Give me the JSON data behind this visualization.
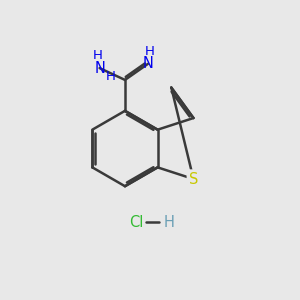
{
  "background_color": "#e8e8e8",
  "bond_color": "#3a3a3a",
  "N_color": "#0000ee",
  "S_color": "#c8c800",
  "Cl_color": "#33bb33",
  "H_bond_color": "#6a9fb5",
  "figsize": [
    3.0,
    3.0
  ],
  "dpi": 100,
  "xlim": [
    0,
    10
  ],
  "ylim": [
    0,
    10
  ]
}
